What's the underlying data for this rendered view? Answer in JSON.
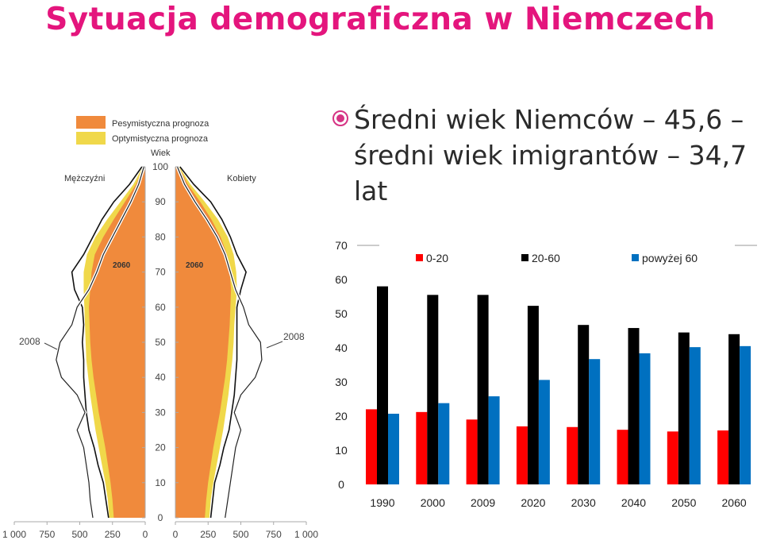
{
  "page": {
    "title": "Sytuacja demograficzna w Niemczech",
    "bullet_text": "Średni wiek Niemców – 45,6 – średni wiek imigrantów – 34,7 lat"
  },
  "colors": {
    "title": "#e4157d",
    "pessimistic": "#f08a3c",
    "optimistic": "#f0d84a",
    "bar_0_20": "#ff0000",
    "bar_20_60": "#000000",
    "bar_over60": "#0070c0",
    "bullet": "#d63384"
  },
  "chart_data": [
    {
      "type": "area",
      "description_labels": {
        "legend": [
          "Pesymistyczna prognoza",
          "Optymistyczna prognoza"
        ],
        "axis_label_age": "Wiek",
        "left_label": "Mężczyźni",
        "right_label": "Kobiety",
        "outline_2060": "2060",
        "outline_2008": "2008"
      },
      "age_ticks": [
        0,
        10,
        20,
        30,
        40,
        50,
        60,
        70,
        80,
        90,
        100
      ],
      "x_tick_labels": [
        "1 000",
        "750",
        "500",
        "250",
        "0",
        "0",
        "250",
        "500",
        "750",
        "1 000"
      ],
      "x_ticks_left": [
        1000,
        750,
        500,
        250,
        0
      ],
      "x_ticks_right": [
        0,
        250,
        500,
        750,
        1000
      ],
      "ylim": [
        0,
        100
      ],
      "xlim": [
        0,
        1000
      ],
      "ages": [
        0,
        5,
        10,
        15,
        20,
        25,
        30,
        35,
        40,
        45,
        50,
        55,
        60,
        65,
        70,
        75,
        80,
        85,
        90,
        95,
        100
      ],
      "series": [
        {
          "name": "Pesymistyczna prognoza",
          "male": [
            240,
            250,
            265,
            285,
            305,
            330,
            355,
            375,
            395,
            410,
            420,
            425,
            430,
            420,
            410,
            385,
            320,
            240,
            155,
            70,
            15
          ],
          "female": [
            225,
            235,
            250,
            270,
            290,
            315,
            340,
            360,
            380,
            395,
            405,
            415,
            420,
            425,
            415,
            395,
            345,
            275,
            190,
            95,
            25
          ]
        },
        {
          "name": "Optymistyczna prognoza",
          "male": [
            275,
            285,
            305,
            330,
            355,
            380,
            400,
            420,
            435,
            450,
            455,
            460,
            465,
            470,
            470,
            445,
            380,
            290,
            190,
            90,
            20
          ],
          "female": [
            260,
            270,
            290,
            315,
            340,
            365,
            385,
            405,
            420,
            435,
            445,
            450,
            460,
            470,
            465,
            445,
            400,
            325,
            225,
            115,
            30
          ]
        },
        {
          "name": "2060",
          "male": [
            280,
            300,
            320,
            360,
            390,
            430,
            450,
            460,
            470,
            470,
            480,
            470,
            480,
            540,
            560,
            470,
            400,
            330,
            240,
            120,
            25
          ],
          "female": [
            270,
            285,
            300,
            340,
            370,
            410,
            430,
            450,
            460,
            470,
            470,
            470,
            470,
            500,
            540,
            470,
            420,
            355,
            270,
            140,
            35
          ]
        },
        {
          "name": "2008",
          "male": [
            400,
            420,
            430,
            450,
            470,
            520,
            460,
            520,
            640,
            680,
            650,
            560,
            520,
            430,
            370,
            320,
            250,
            180,
            110,
            50,
            10
          ],
          "female": [
            380,
            400,
            420,
            440,
            460,
            500,
            450,
            500,
            610,
            660,
            650,
            560,
            520,
            460,
            420,
            380,
            320,
            240,
            150,
            70,
            15
          ]
        }
      ]
    },
    {
      "type": "bar",
      "categories": [
        "1990",
        "2000",
        "2009",
        "2020",
        "2030",
        "2040",
        "2050",
        "2060"
      ],
      "series": [
        {
          "name": "0-20",
          "values": [
            22,
            21.2,
            19,
            17,
            16.8,
            16,
            15.5,
            15.8
          ]
        },
        {
          "name": "20-60",
          "values": [
            58,
            55.5,
            55.5,
            52.3,
            46.7,
            45.8,
            44.5,
            44
          ]
        },
        {
          "name": "powyżej 60",
          "values": [
            20.7,
            23.8,
            25.8,
            30.6,
            36.7,
            38.4,
            40.2,
            40.5
          ]
        }
      ],
      "y_ticks": [
        "0",
        "10",
        "20",
        "30",
        "40",
        "50",
        "60",
        "70"
      ],
      "ylim": [
        0,
        70
      ],
      "grid": false,
      "legend_position": "top"
    }
  ]
}
